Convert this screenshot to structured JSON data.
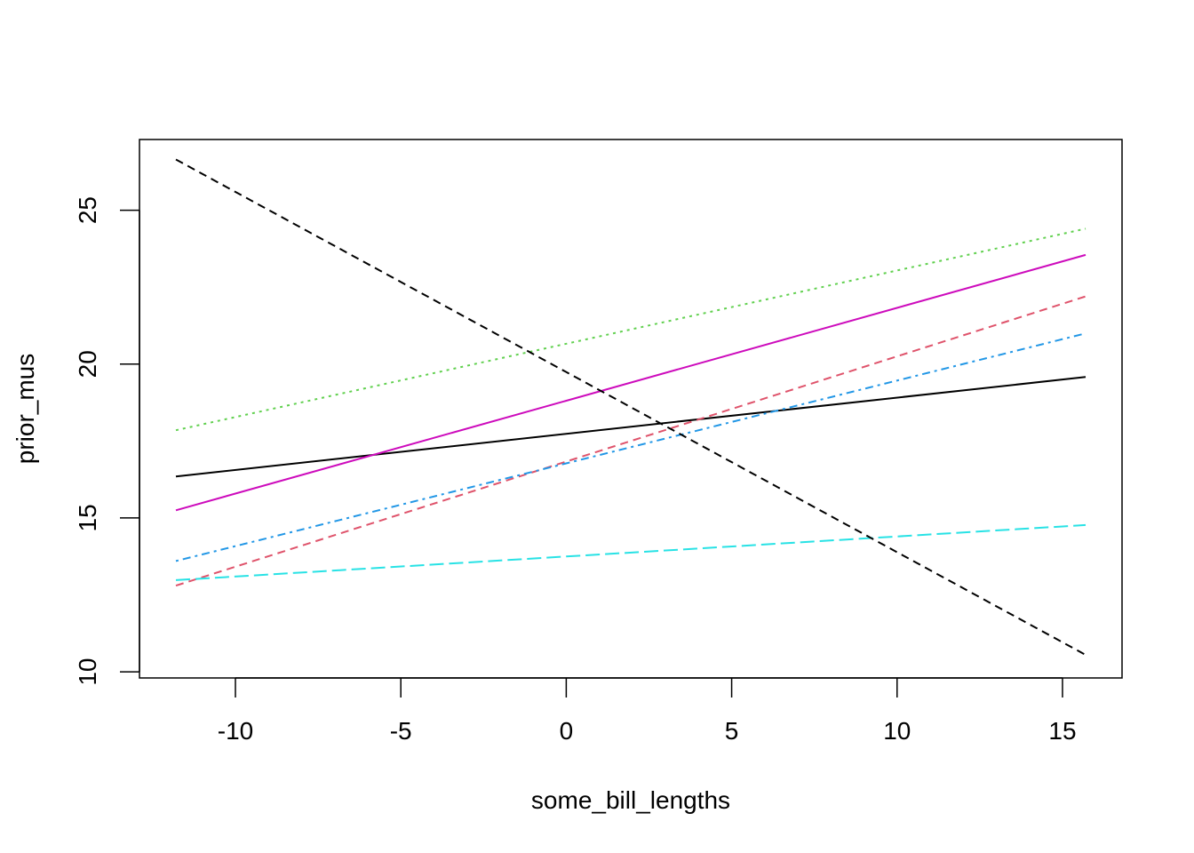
{
  "chart_data": {
    "type": "line",
    "xlabel": "some_bill_lengths",
    "ylabel": "prior_mus",
    "xlim": [
      -12.9,
      16.8
    ],
    "ylim": [
      9.8,
      27.3
    ],
    "xticks": [
      -10,
      -5,
      0,
      5,
      10,
      15
    ],
    "yticks": [
      10,
      15,
      20,
      25
    ],
    "xtick_labels": [
      "-10",
      "-5",
      "0",
      "5",
      "10",
      "15"
    ],
    "ytick_labels": [
      "10",
      "15",
      "20",
      "25"
    ],
    "grid": false,
    "series": [
      {
        "color": "#000000",
        "dash": "solid",
        "x": [
          -11.8,
          15.7
        ],
        "y": [
          16.35,
          19.58
        ]
      },
      {
        "color": "#DF536B",
        "dash": "dashed",
        "x": [
          -11.8,
          15.7
        ],
        "y": [
          12.8,
          22.2
        ]
      },
      {
        "color": "#61D04F",
        "dash": "dotted",
        "x": [
          -11.8,
          15.7
        ],
        "y": [
          17.85,
          24.4
        ]
      },
      {
        "color": "#2297E6",
        "dash": "dotdash",
        "x": [
          -11.8,
          15.7
        ],
        "y": [
          13.6,
          21.0
        ]
      },
      {
        "color": "#28E2E5",
        "dash": "longdash",
        "x": [
          -11.8,
          15.7
        ],
        "y": [
          12.98,
          14.77
        ]
      },
      {
        "color": "#CD0BBC",
        "dash": "solid",
        "x": [
          -11.8,
          15.7
        ],
        "y": [
          15.25,
          23.55
        ]
      },
      {
        "color": "#000000",
        "dash": "dashed",
        "x": [
          -11.8,
          15.7
        ],
        "y": [
          26.65,
          10.55
        ]
      }
    ]
  }
}
